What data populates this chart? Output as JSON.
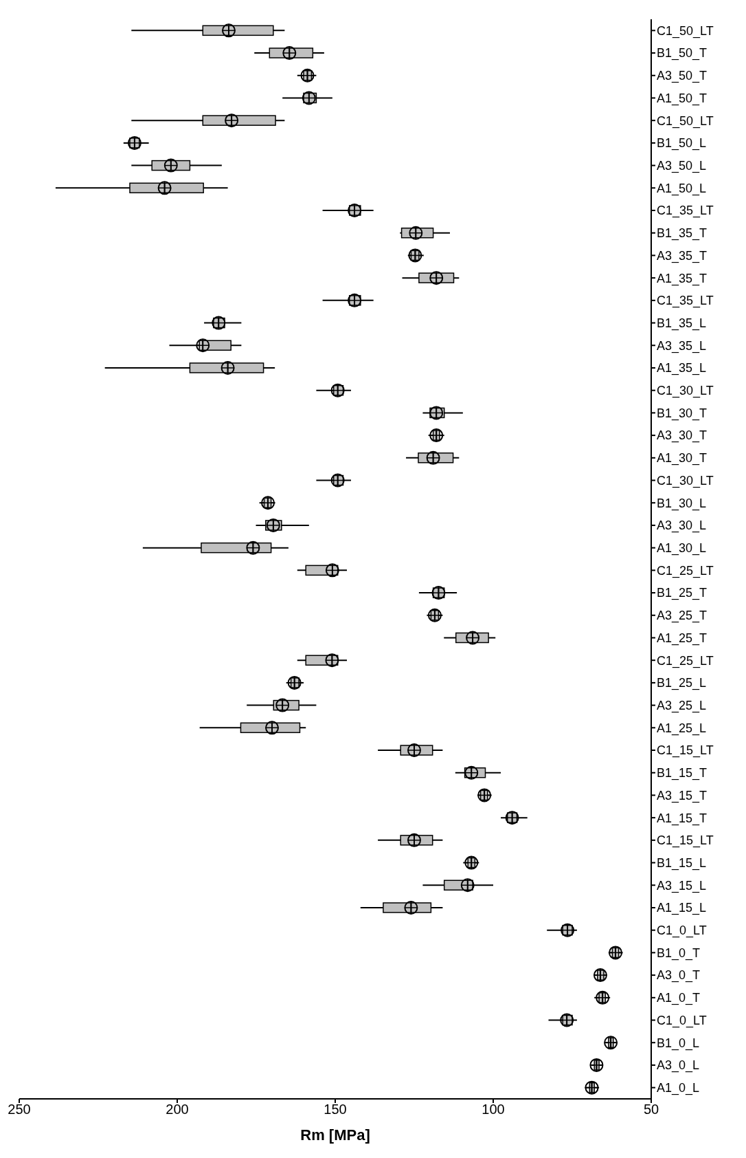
{
  "chart_data": {
    "type": "box",
    "orientation": "horizontal",
    "xlabel": "Rm [MPa]",
    "xlim": [
      250,
      50
    ],
    "xticks": [
      250,
      200,
      150,
      100,
      50
    ],
    "color": "#c0c0c0",
    "grid": false,
    "legend": false,
    "categories": [
      "C1_50_LT",
      "B1_50_T",
      "A3_50_T",
      "A1_50_T",
      "C1_50_LT",
      "B1_50_L",
      "A3_50_L",
      "A1_50_L",
      "C1_35_LT",
      "B1_35_T",
      "A3_35_T",
      "A1_35_T",
      "C1_35_LT",
      "B1_35_L",
      "A3_35_L",
      "A1_35_L",
      "C1_30_LT",
      "B1_30_T",
      "A3_30_T",
      "A1_30_T",
      "C1_30_LT",
      "B1_30_L",
      "A3_30_L",
      "A1_30_L",
      "C1_25_LT",
      "B1_25_T",
      "A3_25_T",
      "A1_25_T",
      "C1_25_LT",
      "B1_25_L",
      "A3_25_L",
      "A1_25_L",
      "C1_15_LT",
      "B1_15_T",
      "A3_15_T",
      "A1_15_T",
      "C1_15_LT",
      "B1_15_L",
      "A3_15_L",
      "A1_15_L",
      "C1_0_LT",
      "B1_0_T",
      "A3_0_T",
      "A1_0_T",
      "C1_0_LT",
      "B1_0_L",
      "A3_0_L",
      "A1_0_L"
    ],
    "boxes": [
      {
        "low": 166,
        "q1": 169.6,
        "median": 183.7,
        "q3": 191.9,
        "high": 214.5,
        "mean": 183.7
      },
      {
        "low": 153.5,
        "q1": 157.1,
        "median": 164.5,
        "q3": 170.8,
        "high": 175.6,
        "mean": 164.5
      },
      {
        "low": 156,
        "q1": 157.5,
        "median": 158.8,
        "q3": 160,
        "high": 162,
        "mean": 158.8
      },
      {
        "low": 150.9,
        "q1": 156,
        "median": 158.3,
        "q3": 160,
        "high": 166.7,
        "mean": 158.3
      },
      {
        "low": 166,
        "q1": 168.9,
        "median": 182.8,
        "q3": 191.9,
        "high": 214.5,
        "mean": 182.8
      },
      {
        "low": 209,
        "q1": 212,
        "median": 213.5,
        "q3": 215,
        "high": 217,
        "mean": 213.5
      },
      {
        "low": 185.9,
        "q1": 196,
        "median": 202,
        "q3": 208,
        "high": 214.5,
        "mean": 202
      },
      {
        "low": 184,
        "q1": 191.7,
        "median": 204,
        "q3": 215,
        "high": 238.5,
        "mean": 204
      },
      {
        "low": 137.9,
        "q1": 142,
        "median": 143.9,
        "q3": 145.5,
        "high": 154,
        "mean": 143.9
      },
      {
        "low": 113.7,
        "q1": 119,
        "median": 124.5,
        "q3": 129,
        "high": 129.5,
        "mean": 124.5
      },
      {
        "low": 122,
        "q1": 123.5,
        "median": 124.7,
        "q3": 126,
        "high": 127,
        "mean": 124.7
      },
      {
        "low": 110.8,
        "q1": 112.5,
        "median": 118,
        "q3": 123.5,
        "high": 128.8,
        "mean": 118
      },
      {
        "low": 137.9,
        "q1": 142,
        "median": 143.9,
        "q3": 145.5,
        "high": 154,
        "mean": 143.9
      },
      {
        "low": 179.7,
        "q1": 185,
        "median": 186.9,
        "q3": 188.5,
        "high": 191.5,
        "mean": 186.9
      },
      {
        "low": 179.7,
        "q1": 183,
        "median": 191.9,
        "q3": 193,
        "high": 202.5,
        "mean": 191.9
      },
      {
        "low": 169.1,
        "q1": 172.7,
        "median": 184,
        "q3": 196,
        "high": 222.9,
        "mean": 184
      },
      {
        "low": 145,
        "q1": 147.5,
        "median": 149.2,
        "q3": 150.5,
        "high": 156,
        "mean": 149.2
      },
      {
        "low": 109.6,
        "q1": 115.5,
        "median": 118,
        "q3": 120,
        "high": 122.3,
        "mean": 118
      },
      {
        "low": 115.5,
        "q1": 117,
        "median": 118,
        "q3": 119,
        "high": 120.5,
        "mean": 118
      },
      {
        "low": 110.8,
        "q1": 112.7,
        "median": 119,
        "q3": 123.7,
        "high": 127.6,
        "mean": 119
      },
      {
        "low": 145,
        "q1": 147.5,
        "median": 149.2,
        "q3": 150.5,
        "high": 156,
        "mean": 149.2
      },
      {
        "low": 169,
        "q1": 170.3,
        "median": 171.3,
        "q3": 172.5,
        "high": 174,
        "mean": 171.3
      },
      {
        "low": 158.3,
        "q1": 167,
        "median": 169.6,
        "q3": 172,
        "high": 175.1,
        "mean": 169.6
      },
      {
        "low": 164.8,
        "q1": 170.3,
        "median": 176,
        "q3": 192.4,
        "high": 210.9,
        "mean": 176
      },
      {
        "low": 146.3,
        "q1": 149.2,
        "median": 150.9,
        "q3": 159.3,
        "high": 162,
        "mean": 150.9
      },
      {
        "low": 111.5,
        "q1": 115.5,
        "median": 117.3,
        "q3": 119,
        "high": 123.5,
        "mean": 117.3
      },
      {
        "low": 116,
        "q1": 117.3,
        "median": 118.5,
        "q3": 119.7,
        "high": 121,
        "mean": 118.5
      },
      {
        "low": 99.3,
        "q1": 101.5,
        "median": 106.5,
        "q3": 111.8,
        "high": 115.6,
        "mean": 106.5
      },
      {
        "low": 146.3,
        "q1": 149.2,
        "median": 151,
        "q3": 159.3,
        "high": 162,
        "mean": 151
      },
      {
        "low": 160,
        "q1": 161.5,
        "median": 162.9,
        "q3": 164,
        "high": 165.5,
        "mean": 162.9
      },
      {
        "low": 156,
        "q1": 161.5,
        "median": 166.7,
        "q3": 169.5,
        "high": 178,
        "mean": 166.7
      },
      {
        "low": 159.3,
        "q1": 161.2,
        "median": 170,
        "q3": 179.9,
        "high": 192.9,
        "mean": 170
      },
      {
        "low": 116,
        "q1": 119.2,
        "median": 125,
        "q3": 129.3,
        "high": 136.5,
        "mean": 125
      },
      {
        "low": 97.6,
        "q1": 102.5,
        "median": 106.9,
        "q3": 109,
        "high": 112,
        "mean": 106.9
      },
      {
        "low": 100.5,
        "q1": 101.8,
        "median": 102.8,
        "q3": 104,
        "high": 105,
        "mean": 102.8
      },
      {
        "low": 89.2,
        "q1": 92.5,
        "median": 94,
        "q3": 95.5,
        "high": 97.6,
        "mean": 94
      },
      {
        "low": 116,
        "q1": 119.2,
        "median": 125,
        "q3": 129.3,
        "high": 136.5,
        "mean": 125
      },
      {
        "low": 104.5,
        "q1": 105.8,
        "median": 106.9,
        "q3": 108,
        "high": 109.5,
        "mean": 106.9
      },
      {
        "low": 100,
        "q1": 106.5,
        "median": 108.1,
        "q3": 115.5,
        "high": 122.3,
        "mean": 108.1
      },
      {
        "low": 116,
        "q1": 119.7,
        "median": 126,
        "q3": 134.8,
        "high": 142,
        "mean": 126
      },
      {
        "low": 73.5,
        "q1": 75,
        "median": 76.5,
        "q3": 78,
        "high": 83,
        "mean": 76.5
      },
      {
        "low": 59,
        "q1": 60.3,
        "median": 61.3,
        "q3": 62.3,
        "high": 63.5,
        "mean": 61.3
      },
      {
        "low": 64,
        "q1": 65,
        "median": 66.1,
        "q3": 67,
        "high": 68,
        "mean": 66.1
      },
      {
        "low": 63,
        "q1": 64.5,
        "median": 65.4,
        "q3": 66.5,
        "high": 68,
        "mean": 65.4
      },
      {
        "low": 73.5,
        "q1": 75,
        "median": 76.7,
        "q3": 78,
        "high": 82.5,
        "mean": 76.7
      },
      {
        "low": 61,
        "q1": 62,
        "median": 62.8,
        "q3": 63.5,
        "high": 64.5,
        "mean": 62.8
      },
      {
        "low": 65.5,
        "q1": 66.5,
        "median": 67.3,
        "q3": 68,
        "high": 69,
        "mean": 67.3
      },
      {
        "low": 66.5,
        "q1": 68,
        "median": 68.8,
        "q3": 69.5,
        "high": 71,
        "mean": 68.8
      }
    ]
  }
}
